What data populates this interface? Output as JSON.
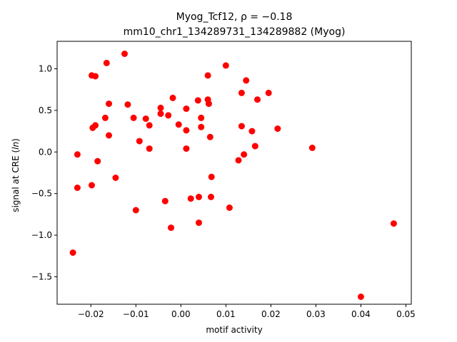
{
  "chart_data": {
    "type": "scatter",
    "title_line1": "Myog_Tcf12, ρ = −0.18",
    "title_line2": "mm10_chr1_134289731_134289882 (Myog)",
    "xlabel": "motif activity",
    "ylabel": "signal at CRE (ln)",
    "xlim": [
      -0.0275,
      0.0512
    ],
    "ylim": [
      -1.83,
      1.33
    ],
    "xticks": [
      -0.02,
      -0.01,
      0.0,
      0.01,
      0.02,
      0.03,
      0.04,
      0.05
    ],
    "xtick_labels": [
      "−0.02",
      "−0.01",
      "0.00",
      "0.01",
      "0.02",
      "0.03",
      "0.04",
      "0.05"
    ],
    "yticks": [
      -1.5,
      -1.0,
      -0.5,
      0.0,
      0.5,
      1.0
    ],
    "ytick_labels": [
      "−1.5",
      "−1.0",
      "−0.5",
      "0.0",
      "0.5",
      "1.0"
    ],
    "grid": false,
    "marker_color": "#ff0000",
    "points": [
      {
        "x": -0.0125,
        "y": 1.18
      },
      {
        "x": -0.0165,
        "y": 1.07
      },
      {
        "x": 0.01,
        "y": 1.04
      },
      {
        "x": -0.0198,
        "y": 0.92
      },
      {
        "x": -0.019,
        "y": 0.91
      },
      {
        "x": 0.006,
        "y": 0.92
      },
      {
        "x": 0.0145,
        "y": 0.86
      },
      {
        "x": 0.0195,
        "y": 0.71
      },
      {
        "x": 0.0135,
        "y": 0.71
      },
      {
        "x": -0.0018,
        "y": 0.65
      },
      {
        "x": 0.0038,
        "y": 0.62
      },
      {
        "x": 0.006,
        "y": 0.63
      },
      {
        "x": 0.017,
        "y": 0.63
      },
      {
        "x": -0.016,
        "y": 0.58
      },
      {
        "x": -0.0118,
        "y": 0.57
      },
      {
        "x": 0.0062,
        "y": 0.58
      },
      {
        "x": -0.0045,
        "y": 0.53
      },
      {
        "x": -0.0045,
        "y": 0.46
      },
      {
        "x": 0.0012,
        "y": 0.52
      },
      {
        "x": -0.0028,
        "y": 0.44
      },
      {
        "x": -0.0168,
        "y": 0.41
      },
      {
        "x": -0.0105,
        "y": 0.41
      },
      {
        "x": -0.0078,
        "y": 0.4
      },
      {
        "x": 0.0045,
        "y": 0.41
      },
      {
        "x": -0.0005,
        "y": 0.33
      },
      {
        "x": -0.007,
        "y": 0.32
      },
      {
        "x": -0.019,
        "y": 0.32
      },
      {
        "x": -0.0196,
        "y": 0.29
      },
      {
        "x": 0.0135,
        "y": 0.31
      },
      {
        "x": 0.0045,
        "y": 0.3
      },
      {
        "x": 0.0215,
        "y": 0.28
      },
      {
        "x": 0.0012,
        "y": 0.26
      },
      {
        "x": 0.0158,
        "y": 0.25
      },
      {
        "x": -0.016,
        "y": 0.2
      },
      {
        "x": 0.0065,
        "y": 0.18
      },
      {
        "x": -0.0092,
        "y": 0.13
      },
      {
        "x": 0.0165,
        "y": 0.07
      },
      {
        "x": 0.0292,
        "y": 0.05
      },
      {
        "x": 0.0012,
        "y": 0.04
      },
      {
        "x": -0.007,
        "y": 0.04
      },
      {
        "x": 0.014,
        "y": -0.03
      },
      {
        "x": -0.023,
        "y": -0.03
      },
      {
        "x": -0.0185,
        "y": -0.11
      },
      {
        "x": 0.0128,
        "y": -0.1
      },
      {
        "x": 0.0068,
        "y": -0.3
      },
      {
        "x": -0.0145,
        "y": -0.31
      },
      {
        "x": -0.0198,
        "y": -0.4
      },
      {
        "x": -0.023,
        "y": -0.43
      },
      {
        "x": 0.004,
        "y": -0.54
      },
      {
        "x": 0.0067,
        "y": -0.54
      },
      {
        "x": 0.0022,
        "y": -0.56
      },
      {
        "x": -0.0035,
        "y": -0.59
      },
      {
        "x": 0.0108,
        "y": -0.67
      },
      {
        "x": -0.01,
        "y": -0.7
      },
      {
        "x": 0.004,
        "y": -0.85
      },
      {
        "x": 0.0473,
        "y": -0.86
      },
      {
        "x": -0.0022,
        "y": -0.91
      },
      {
        "x": -0.024,
        "y": -1.21
      },
      {
        "x": 0.04,
        "y": -1.74
      }
    ]
  }
}
